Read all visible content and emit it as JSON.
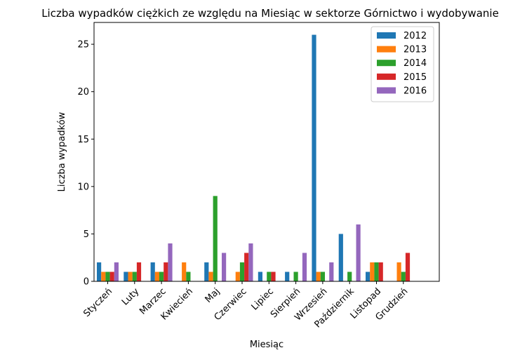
{
  "chart_data": {
    "type": "bar",
    "title": "Liczba wypadków ciężkich ze względu na Miesiąc w sektorze Górnictwo i wydobywanie",
    "xlabel": "Miesiąc",
    "ylabel": "Liczba wypadków",
    "ylim": [
      0,
      27.3
    ],
    "yticks": [
      0,
      5,
      10,
      15,
      20,
      25
    ],
    "grid": false,
    "legend_position": "top-right",
    "categories": [
      "Styczeń",
      "Luty",
      "Marzec",
      "Kwiecień",
      "Maj",
      "Czerwiec",
      "Lipiec",
      "Sierpień",
      "Wrzesień",
      "Październik",
      "Listopad",
      "Grudzień"
    ],
    "series": [
      {
        "name": "2012",
        "color": "#1f77b4",
        "values": [
          2,
          1,
          2,
          0,
          2,
          0,
          1,
          1,
          26,
          5,
          1,
          0
        ]
      },
      {
        "name": "2013",
        "color": "#ff7f0e",
        "values": [
          1,
          1,
          1,
          2,
          1,
          1,
          0,
          0,
          1,
          0,
          2,
          2
        ]
      },
      {
        "name": "2014",
        "color": "#2ca02c",
        "values": [
          1,
          1,
          1,
          1,
          9,
          2,
          1,
          1,
          1,
          1,
          2,
          1
        ]
      },
      {
        "name": "2015",
        "color": "#d62728",
        "values": [
          1,
          2,
          2,
          0,
          0,
          3,
          1,
          0,
          0,
          0,
          2,
          3
        ]
      },
      {
        "name": "2016",
        "color": "#9467bd",
        "values": [
          2,
          0,
          4,
          0,
          3,
          4,
          0,
          3,
          2,
          6,
          0,
          0
        ]
      }
    ]
  }
}
